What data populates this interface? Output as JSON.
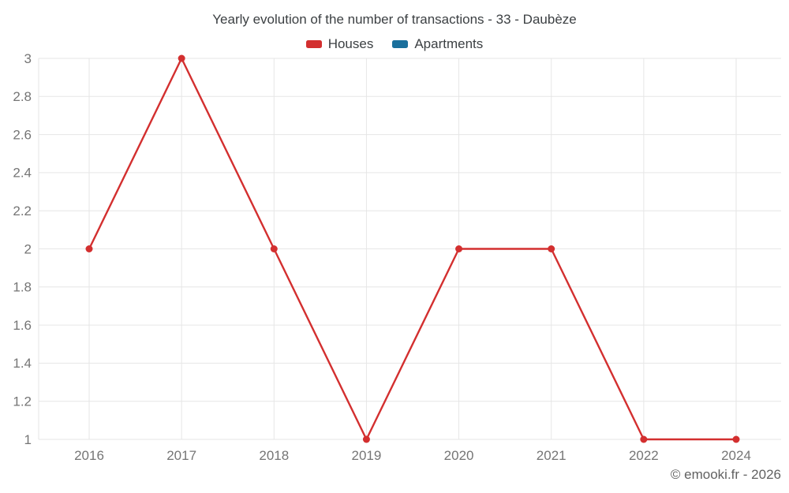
{
  "title": "Yearly evolution of the number of transactions - 33 - Daubèze",
  "copyright": "© emooki.fr - 2026",
  "legend": [
    {
      "label": "Houses",
      "color": "#d32f2f"
    },
    {
      "label": "Apartments",
      "color": "#1a6f9c"
    }
  ],
  "chart_data": {
    "type": "line",
    "title": "Yearly evolution of the number of transactions - 33 - Daubèze",
    "categories": [
      "2016",
      "2017",
      "2018",
      "2019",
      "2020",
      "2021",
      "2022",
      "2024"
    ],
    "series": [
      {
        "name": "Houses",
        "color": "#d32f2f",
        "values": [
          2,
          3,
          2,
          1,
          2,
          2,
          1,
          1
        ]
      },
      {
        "name": "Apartments",
        "color": "#1a6f9c",
        "values": []
      }
    ],
    "xlabel": "",
    "ylabel": "",
    "ylim": [
      1,
      3
    ],
    "yticks": [
      1,
      1.2,
      1.4,
      1.6,
      1.8,
      2,
      2.2,
      2.4,
      2.6,
      2.8,
      3
    ],
    "grid": true,
    "legend_position": "top",
    "gridline_color": "#e6e6e6",
    "tick_label_color": "#757575"
  }
}
